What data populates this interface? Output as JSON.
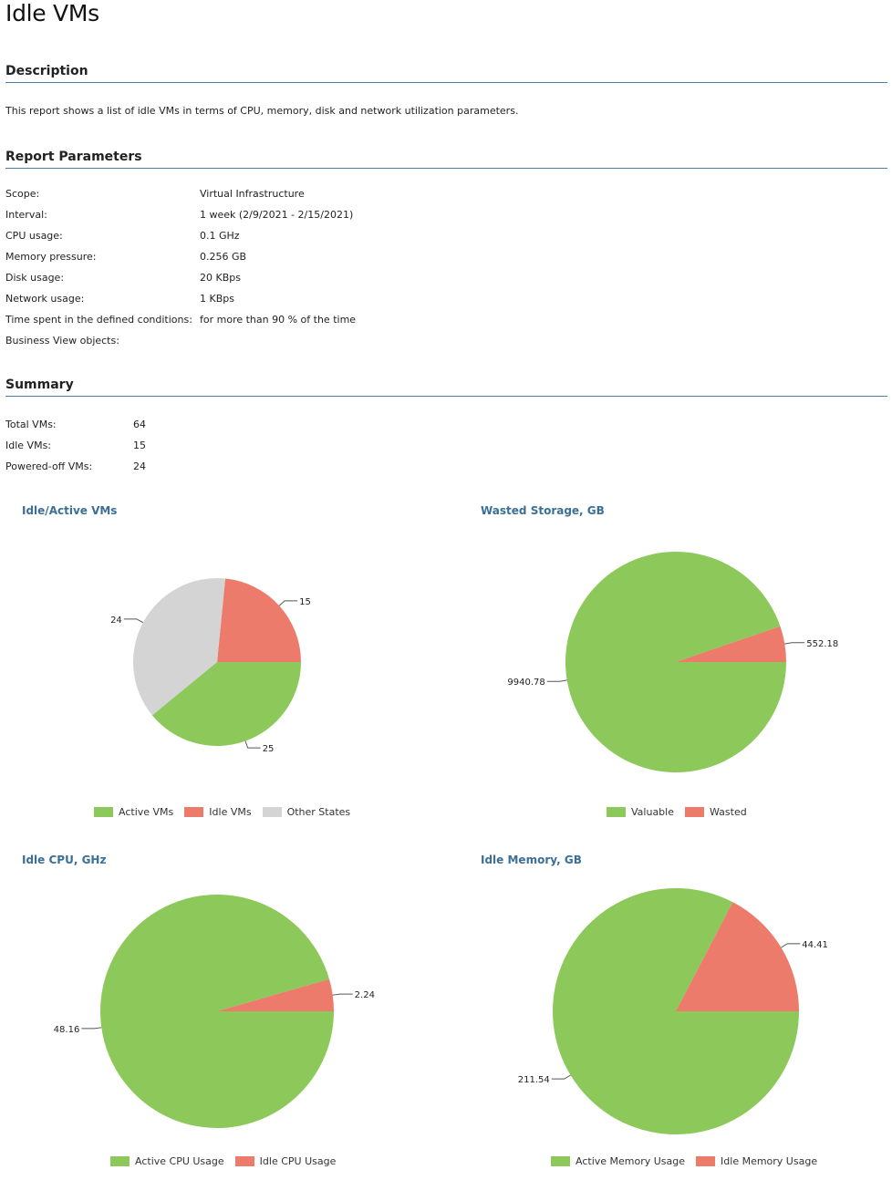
{
  "title": "Idle VMs",
  "description": {
    "heading": "Description",
    "text": "This report shows a list of idle VMs in terms of CPU, memory, disk and network utilization parameters."
  },
  "parameters": {
    "heading": "Report Parameters",
    "rows": [
      {
        "label": "Scope:",
        "value": "Virtual Infrastructure"
      },
      {
        "label": "Interval:",
        "value": "1 week (2/9/2021 - 2/15/2021)"
      },
      {
        "label": "CPU usage:",
        "value": "0.1 GHz"
      },
      {
        "label": "Memory pressure:",
        "value": "0.256 GB"
      },
      {
        "label": "Disk usage:",
        "value": "20 KBps"
      },
      {
        "label": "Network usage:",
        "value": "1 KBps"
      },
      {
        "label": "Time spent in the defined conditions:",
        "value": "for more than 90 % of the time"
      },
      {
        "label": "Business View objects:",
        "value": ""
      }
    ]
  },
  "summary": {
    "heading": "Summary",
    "rows": [
      {
        "label": "Total VMs:",
        "value": "64"
      },
      {
        "label": "Idle VMs:",
        "value": "15"
      },
      {
        "label": "Powered-off VMs:",
        "value": "24"
      }
    ]
  },
  "colors": {
    "green": "#8cc85a",
    "red": "#ec7b6b",
    "gray": "#d4d4d4",
    "accent": "#3b6f97",
    "rule": "#4a7fa0"
  },
  "chart_data": [
    {
      "type": "pie",
      "title": "Idle/Active VMs",
      "slices": [
        {
          "label": "Active VMs",
          "value": 25,
          "display": "25",
          "color": "#8cc85a"
        },
        {
          "label": "Idle VMs",
          "value": 15,
          "display": "15",
          "color": "#ec7b6b"
        },
        {
          "label": "Other States",
          "value": 24,
          "display": "24",
          "color": "#d4d4d4"
        }
      ],
      "legend_position": "bottom"
    },
    {
      "type": "pie",
      "title": "Wasted Storage, GB",
      "slices": [
        {
          "label": "Valuable",
          "value": 9940.78,
          "display": "9940.78",
          "color": "#8cc85a"
        },
        {
          "label": "Wasted",
          "value": 552.18,
          "display": "552.18",
          "color": "#ec7b6b"
        }
      ],
      "legend_position": "bottom"
    },
    {
      "type": "pie",
      "title": "Idle CPU, GHz",
      "slices": [
        {
          "label": "Active CPU Usage",
          "value": 48.16,
          "display": "48.16",
          "color": "#8cc85a"
        },
        {
          "label": "Idle CPU Usage",
          "value": 2.24,
          "display": "2.24",
          "color": "#ec7b6b"
        }
      ],
      "legend_position": "bottom"
    },
    {
      "type": "pie",
      "title": "Idle Memory, GB",
      "slices": [
        {
          "label": "Active Memory Usage",
          "value": 211.54,
          "display": "211.54",
          "color": "#8cc85a"
        },
        {
          "label": "Idle Memory Usage",
          "value": 44.41,
          "display": "44.41",
          "color": "#ec7b6b"
        }
      ],
      "legend_position": "bottom"
    }
  ]
}
